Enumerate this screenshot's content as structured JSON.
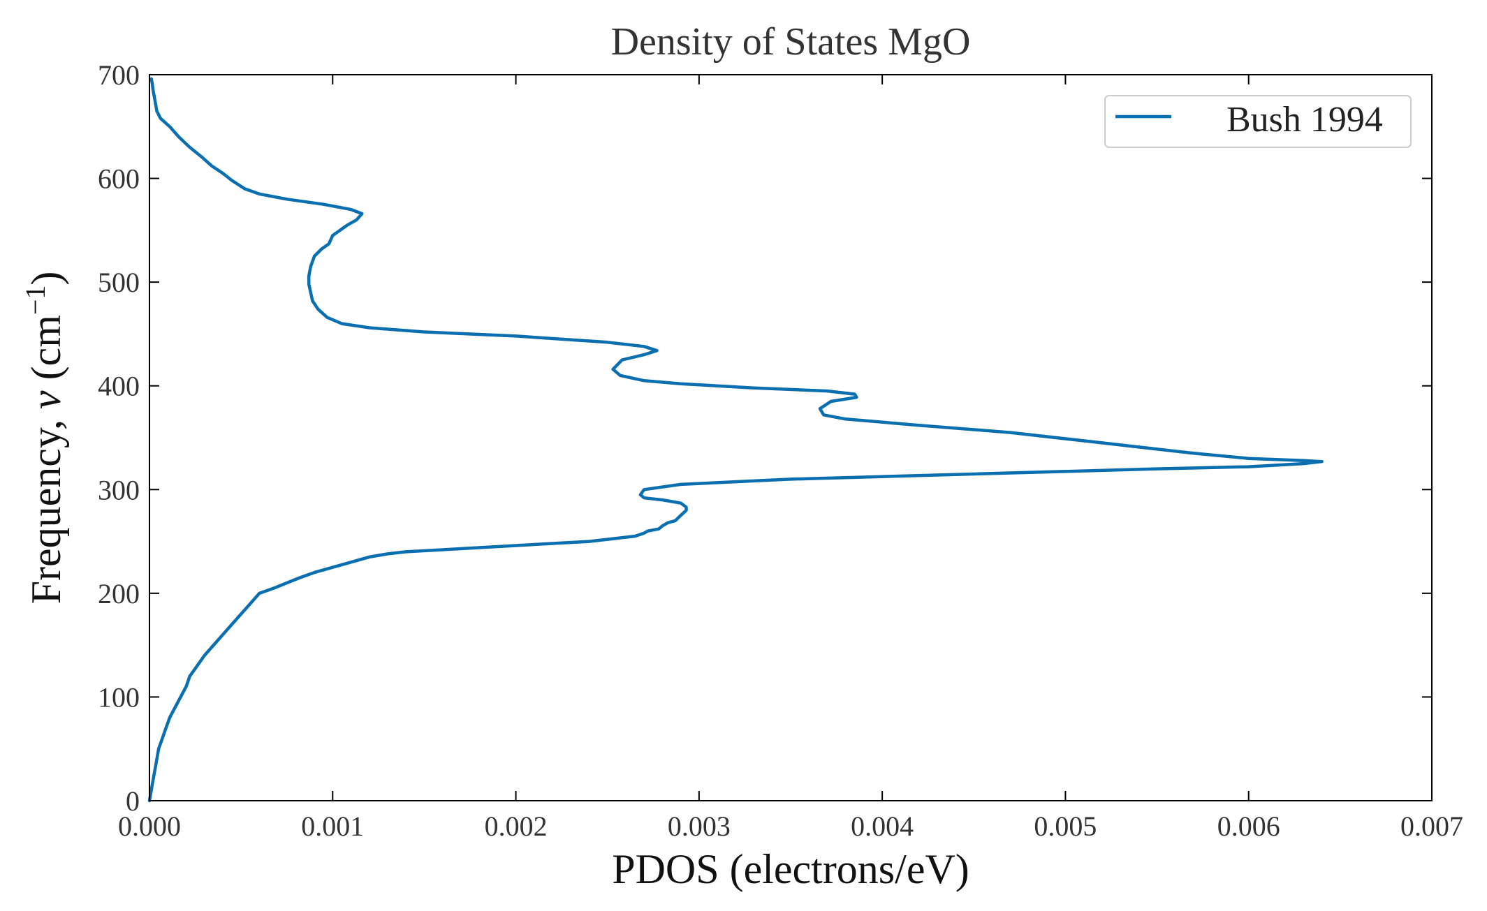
{
  "chart_data": {
    "type": "line",
    "title": "Density of States MgO",
    "xlabel": "PDOS (electrons/eV)",
    "ylabel_prefix": "Frequency, ",
    "ylabel_symbol": "ν",
    "ylabel_unit_open": " (cm",
    "ylabel_unit_exp": "−1",
    "ylabel_unit_close": ")",
    "xlim": [
      0,
      0.007
    ],
    "ylim": [
      0,
      700
    ],
    "x_ticks": [
      0,
      0.001,
      0.002,
      0.003,
      0.004,
      0.005,
      0.006,
      0.007
    ],
    "x_tick_labels": [
      "0.000",
      "0.001",
      "0.002",
      "0.003",
      "0.004",
      "0.005",
      "0.006",
      "0.007"
    ],
    "y_ticks": [
      0,
      100,
      200,
      300,
      400,
      500,
      600,
      700
    ],
    "y_tick_labels": [
      "0",
      "100",
      "200",
      "300",
      "400",
      "500",
      "600",
      "700"
    ],
    "grid": false,
    "legend_position": "top-right",
    "series": [
      {
        "name": "Bush 1994",
        "color": "#0a6fb0",
        "x": [
          0.0,
          1e-05,
          2e-05,
          3e-05,
          4e-05,
          5e-05,
          7e-05,
          9e-05,
          0.00011,
          0.00014,
          0.00017,
          0.0002,
          0.00022,
          0.00026,
          0.0003,
          0.00035,
          0.0004,
          0.00045,
          0.0005,
          0.00055,
          0.0006,
          0.00068,
          0.00075,
          0.00082,
          0.0009,
          0.001,
          0.0011,
          0.0012,
          0.0013,
          0.0014,
          0.0016,
          0.0018,
          0.002,
          0.0022,
          0.0024,
          0.00255,
          0.00265,
          0.0027,
          0.00272,
          0.00278,
          0.0028,
          0.00283,
          0.00287,
          0.0029,
          0.00293,
          0.00293,
          0.0029,
          0.0028,
          0.0027,
          0.00268,
          0.0027,
          0.0029,
          0.0035,
          0.0045,
          0.0055,
          0.006,
          0.0063,
          0.0064,
          0.0063,
          0.006,
          0.0057,
          0.0052,
          0.0047,
          0.0042,
          0.0038,
          0.00368,
          0.00366,
          0.00372,
          0.00386,
          0.00385,
          0.0037,
          0.0033,
          0.0029,
          0.0027,
          0.00257,
          0.00253,
          0.00258,
          0.0027,
          0.00277,
          0.0027,
          0.0025,
          0.002,
          0.0015,
          0.0012,
          0.00105,
          0.00097,
          0.00092,
          0.00089,
          0.00088,
          0.00087,
          0.00087,
          0.00088,
          0.0009,
          0.00094,
          0.00098,
          0.001,
          0.00104,
          0.00108,
          0.00113,
          0.00116,
          0.0011,
          0.00095,
          0.00075,
          0.0006,
          0.00052,
          0.00045,
          0.0004,
          0.00034,
          0.00029,
          0.00022,
          0.00016,
          0.00011,
          6e-05,
          4e-05,
          3e-05,
          2e-05,
          1.5e-05,
          1e-05
        ],
        "y": [
          0,
          10,
          20,
          30,
          40,
          50,
          60,
          70,
          80,
          90,
          100,
          110,
          120,
          130,
          140,
          150,
          160,
          170,
          180,
          190,
          200,
          205,
          210,
          215,
          220,
          225,
          230,
          235,
          238,
          240,
          242,
          244,
          246,
          248,
          250,
          253,
          255,
          258,
          260,
          262,
          265,
          268,
          270,
          275,
          280,
          283,
          287,
          290,
          292,
          295,
          300,
          305,
          310,
          315,
          320,
          322,
          325,
          327,
          328,
          330,
          335,
          345,
          355,
          362,
          368,
          372,
          378,
          385,
          389,
          392,
          395,
          398,
          402,
          405,
          410,
          416,
          425,
          430,
          434,
          438,
          442,
          448,
          452,
          456,
          460,
          466,
          474,
          482,
          490,
          498,
          506,
          515,
          525,
          532,
          537,
          545,
          550,
          555,
          560,
          566,
          570,
          575,
          580,
          585,
          590,
          598,
          605,
          612,
          620,
          630,
          640,
          650,
          658,
          665,
          675,
          685,
          692,
          696
        ]
      }
    ]
  }
}
